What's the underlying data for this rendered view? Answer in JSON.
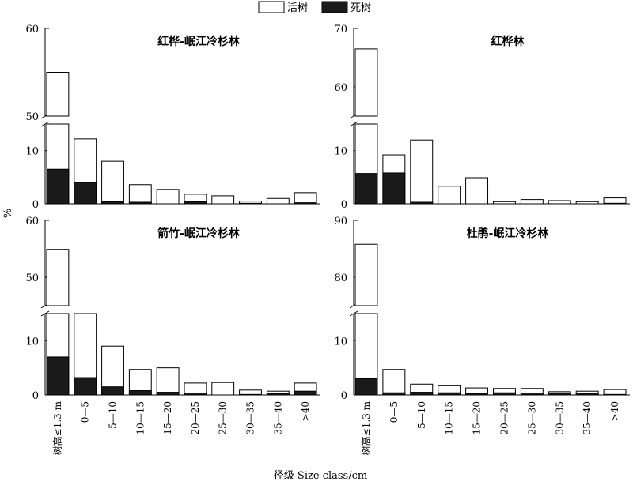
{
  "legend": [
    {
      "label": "活树",
      "color": "#ffffff"
    },
    {
      "label": "死树",
      "color": "#1a1a1a"
    }
  ],
  "xlabel": "径级 Size class/cm",
  "ylabel": "%",
  "chart_data": [
    {
      "type": "bar",
      "title": "红桦-岷江冷杉林",
      "categories": [
        "树高≤1.3 m",
        "0—5",
        "5—10",
        "10—15",
        "15—20",
        "20—25",
        "25—30",
        "30—35",
        "35—40",
        ">40"
      ],
      "series": [
        {
          "name": "活树",
          "values": [
            48.5,
            8.2,
            7.6,
            3.3,
            2.7,
            1.4,
            1.5,
            0.4,
            1.0,
            1.9
          ]
        },
        {
          "name": "死树",
          "values": [
            6.5,
            4.0,
            0.4,
            0.3,
            0.0,
            0.4,
            0.0,
            0.1,
            0.0,
            0.2
          ]
        }
      ],
      "ylim": [
        0,
        60
      ],
      "y_break": [
        15,
        50
      ],
      "yticks": [
        0,
        10,
        50,
        60
      ]
    },
    {
      "type": "bar",
      "title": "红桦林",
      "categories": [
        "树高≤1.3 m",
        "0—5",
        "5—10",
        "10—15",
        "15—20",
        "20—25",
        "25—30",
        "30—35",
        "35—40",
        ">40"
      ],
      "series": [
        {
          "name": "活树",
          "values": [
            60.8,
            3.4,
            11.7,
            3.3,
            4.9,
            0.4,
            0.8,
            0.6,
            0.4,
            1.0
          ]
        },
        {
          "name": "死树",
          "values": [
            5.7,
            5.8,
            0.3,
            0.0,
            0.0,
            0.0,
            0.0,
            0.0,
            0.0,
            0.1
          ]
        }
      ],
      "ylim": [
        0,
        70
      ],
      "y_break": [
        15,
        55
      ],
      "yticks": [
        0,
        10,
        60,
        70
      ]
    },
    {
      "type": "bar",
      "title": "箭竹-岷江冷杉林",
      "categories": [
        "树高≤1.3 m",
        "0—5",
        "5—10",
        "10—15",
        "15—20",
        "20—25",
        "25—30",
        "30—35",
        "35—40",
        ">40"
      ],
      "series": [
        {
          "name": "活树",
          "values": [
            47.9,
            11.8,
            7.5,
            3.9,
            4.5,
            2.0,
            2.3,
            0.8,
            0.4,
            1.5
          ]
        },
        {
          "name": "死树",
          "values": [
            7.0,
            3.2,
            1.5,
            0.8,
            0.5,
            0.2,
            0.0,
            0.1,
            0.3,
            0.7
          ]
        }
      ],
      "ylim": [
        0,
        60
      ],
      "y_break": [
        15,
        45
      ],
      "yticks": [
        0,
        10,
        50,
        60
      ]
    },
    {
      "type": "bar",
      "title": "杜鹃-岷江冷杉林",
      "categories": [
        "树高≤1.3 m",
        "0—5",
        "5—10",
        "10—15",
        "15—20",
        "20—25",
        "25—30",
        "30—35",
        "35—40",
        ">40"
      ],
      "series": [
        {
          "name": "活树",
          "values": [
            82.8,
            4.3,
            1.5,
            1.3,
            1.0,
            0.8,
            1.0,
            0.3,
            0.4,
            0.9
          ]
        },
        {
          "name": "死树",
          "values": [
            3.0,
            0.4,
            0.5,
            0.4,
            0.3,
            0.4,
            0.2,
            0.3,
            0.3,
            0.1
          ]
        }
      ],
      "ylim": [
        0,
        90
      ],
      "y_break": [
        15,
        75
      ],
      "yticks": [
        0,
        10,
        80,
        90
      ]
    }
  ]
}
